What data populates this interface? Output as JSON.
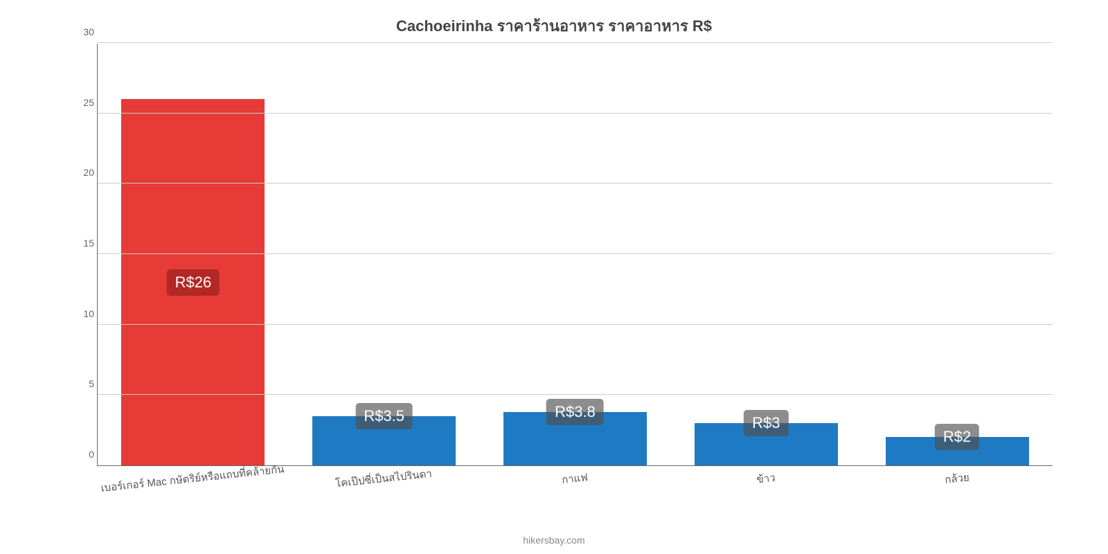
{
  "chart": {
    "type": "bar",
    "title": "Cachoeirinha ราคาร้านอาหาร ราคาอาหาร R$",
    "title_fontsize": 22,
    "title_color": "#444444",
    "attribution": "hikersbay.com",
    "attribution_color": "#888888",
    "background_color": "#ffffff",
    "ylim": [
      0,
      30
    ],
    "ytick_step": 5,
    "yticks": [
      0,
      5,
      10,
      15,
      20,
      25,
      30
    ],
    "grid_color": "#cccccc",
    "axis_color": "#666666",
    "xaxis_label_rotation_deg": -6,
    "bar_width": 0.75,
    "data_label_bg_opacity": 0.6,
    "data_label_fontsize": 22,
    "data_label_text_color": "#ffffff",
    "x_label_fontsize": 15,
    "x_label_color": "#555555",
    "ytick_fontsize": 14,
    "ytick_color": "#666666",
    "categories": [
      "เบอร์เกอร์ Mac กษัตริย์หรือแถบที่คล้ายกัน",
      "โคเป๊ปซี่เป็นสไปรินดา",
      "กาแฟ",
      "ข้าว",
      "กล้วย"
    ],
    "values": [
      26,
      3.5,
      3.8,
      3,
      2
    ],
    "data_labels": [
      "R$26",
      "R$3.5",
      "R$3.8",
      "R$3",
      "R$2"
    ],
    "bar_colors": [
      "#e63b36",
      "#1f7ac4",
      "#1f7ac4",
      "#1f7ac4",
      "#1f7ac4"
    ],
    "label_bg_colors": [
      "rgba(150,30,28,0.65)",
      "rgba(80,80,80,0.65)",
      "rgba(80,80,80,0.65)",
      "rgba(80,80,80,0.65)",
      "rgba(80,80,80,0.65)"
    ],
    "label_y_pos": [
      "middle",
      "top-edge",
      "top-edge",
      "top-edge",
      "top-edge"
    ]
  }
}
